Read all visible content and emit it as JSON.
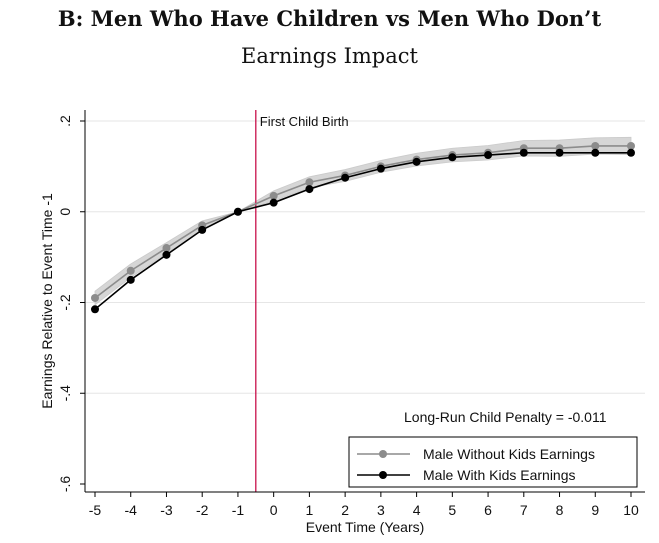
{
  "header": {
    "title": "B: Men Who Have Children vs Men Who Don’t",
    "subtitle": "Earnings Impact"
  },
  "chart_data": {
    "type": "line",
    "title": "B: Men Who Have Children vs Men Who Don’t",
    "subtitle": "Earnings Impact",
    "xlabel": "Event Time (Years)",
    "ylabel": "Earnings Relative to Event Time -1",
    "xlim": [
      -5,
      10
    ],
    "ylim": [
      -0.6,
      0.2
    ],
    "x": [
      -5,
      -4,
      -3,
      -2,
      -1,
      0,
      1,
      2,
      3,
      4,
      5,
      6,
      7,
      8,
      9,
      10
    ],
    "x_tick_labels": [
      "-5",
      "-4",
      "-3",
      "-2",
      "-1",
      "0",
      "1",
      "2",
      "3",
      "4",
      "5",
      "6",
      "7",
      "8",
      "9",
      "10"
    ],
    "y_ticks": [
      0.2,
      0,
      -0.2,
      -0.4,
      -0.6
    ],
    "y_tick_labels": [
      ".2",
      "0",
      "-.2",
      "-.4",
      "-.6"
    ],
    "grid": "horizontal",
    "vertical_line": {
      "x": -0.5,
      "label": "First Child Birth",
      "color": "#c8104a"
    },
    "annotation": "Long-Run Child Penalty = -0.011",
    "legend_position": "bottom-right",
    "series": [
      {
        "name": "Male Without Kids Earnings",
        "color": "#8c8c8c",
        "band_color": "#cfcfcf",
        "values": [
          -0.19,
          -0.13,
          -0.08,
          -0.03,
          0.0,
          0.035,
          0.065,
          0.08,
          0.1,
          0.115,
          0.125,
          0.13,
          0.14,
          0.14,
          0.145,
          0.145
        ],
        "ci_low": [
          -0.205,
          -0.145,
          -0.092,
          -0.04,
          0.0,
          0.024,
          0.053,
          0.067,
          0.087,
          0.101,
          0.11,
          0.114,
          0.123,
          0.122,
          0.127,
          0.126
        ],
        "ci_high": [
          -0.175,
          -0.115,
          -0.068,
          -0.02,
          0.0,
          0.046,
          0.077,
          0.093,
          0.113,
          0.129,
          0.14,
          0.146,
          0.157,
          0.158,
          0.163,
          0.164
        ]
      },
      {
        "name": "Male With Kids Earnings",
        "color": "#000000",
        "values": [
          -0.215,
          -0.15,
          -0.095,
          -0.04,
          0.0,
          0.02,
          0.05,
          0.075,
          0.095,
          0.11,
          0.12,
          0.125,
          0.13,
          0.13,
          0.13,
          0.13
        ]
      }
    ]
  }
}
